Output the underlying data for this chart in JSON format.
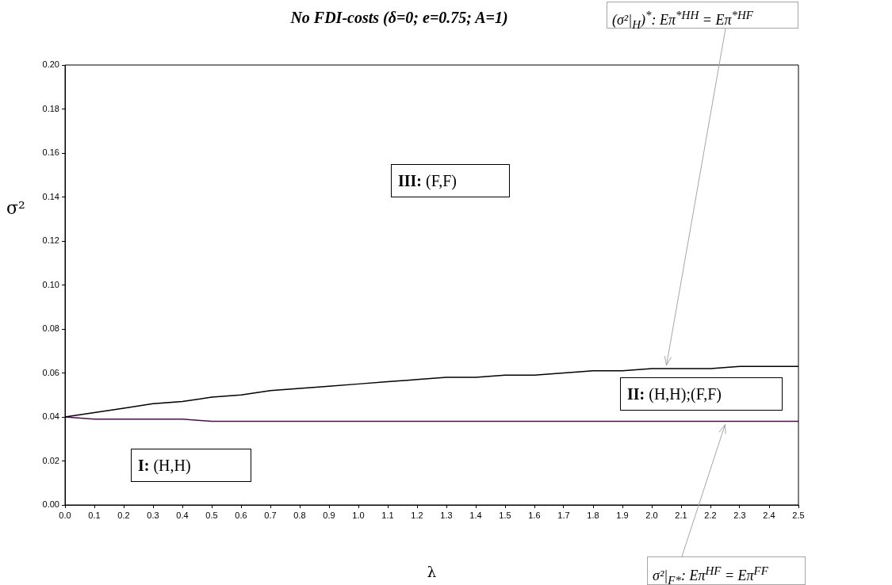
{
  "chart_data": {
    "type": "line",
    "title": "No FDI-costs (δ=0; e=0.75; A=1)",
    "xlabel": "λ",
    "ylabel": "σ²",
    "x": [
      0,
      0.1,
      0.2,
      0.3,
      0.4,
      0.5,
      0.6,
      0.7,
      0.8,
      0.9,
      1.0,
      1.1,
      1.2,
      1.3,
      1.4,
      1.5,
      1.6,
      1.7,
      1.8,
      1.9,
      2.0,
      2.1,
      2.2,
      2.3,
      2.4,
      2.5
    ],
    "series": [
      {
        "color": "#000000",
        "values": [
          0.04,
          0.042,
          0.044,
          0.046,
          0.047,
          0.049,
          0.05,
          0.052,
          0.053,
          0.054,
          0.055,
          0.056,
          0.057,
          0.058,
          0.058,
          0.059,
          0.059,
          0.06,
          0.061,
          0.061,
          0.062,
          0.062,
          0.062,
          0.063,
          0.063,
          0.063
        ]
      },
      {
        "color": "#4b0f4b",
        "values": [
          0.04,
          0.039,
          0.039,
          0.039,
          0.039,
          0.038,
          0.038,
          0.038,
          0.038,
          0.038,
          0.038,
          0.038,
          0.038,
          0.038,
          0.038,
          0.038,
          0.038,
          0.038,
          0.038,
          0.038,
          0.038,
          0.038,
          0.038,
          0.038,
          0.038,
          0.038
        ]
      }
    ],
    "xlim": [
      0,
      2.5
    ],
    "xticks": [
      {
        "value": 0,
        "label": "0.0"
      },
      {
        "value": 0.1,
        "label": "0.1"
      },
      {
        "value": 0.2,
        "label": "0.2"
      },
      {
        "value": 0.3,
        "label": "0.3"
      },
      {
        "value": 0.4,
        "label": "0.4"
      },
      {
        "value": 0.5,
        "label": "0.5"
      },
      {
        "value": 0.6,
        "label": "0.6"
      },
      {
        "value": 0.7,
        "label": "0.7"
      },
      {
        "value": 0.8,
        "label": "0.8"
      },
      {
        "value": 0.9,
        "label": "0.9"
      },
      {
        "value": 1.0,
        "label": "1.0"
      },
      {
        "value": 1.1,
        "label": "1.1"
      },
      {
        "value": 1.2,
        "label": "1.2"
      },
      {
        "value": 1.3,
        "label": "1.3"
      },
      {
        "value": 1.4,
        "label": "1.4"
      },
      {
        "value": 1.5,
        "label": "1.5"
      },
      {
        "value": 1.6,
        "label": "1.6"
      },
      {
        "value": 1.7,
        "label": "1.7"
      },
      {
        "value": 1.8,
        "label": "1.8"
      },
      {
        "value": 1.9,
        "label": "1.9"
      },
      {
        "value": 2.0,
        "label": "2.0"
      },
      {
        "value": 2.1,
        "label": "2.1"
      },
      {
        "value": 2.2,
        "label": "2.2"
      },
      {
        "value": 2.3,
        "label": "2.3"
      },
      {
        "value": 2.4,
        "label": "2.4"
      },
      {
        "value": 2.5,
        "label": "2.5"
      }
    ],
    "ylim": [
      0,
      0.2
    ],
    "yticks": [
      {
        "value": 0,
        "label": "0.00"
      },
      {
        "value": 0.02,
        "label": "0.02"
      },
      {
        "value": 0.04,
        "label": "0.04"
      },
      {
        "value": 0.06,
        "label": "0.06"
      },
      {
        "value": 0.08,
        "label": "0.08"
      },
      {
        "value": 0.1,
        "label": "0.10"
      },
      {
        "value": 0.12,
        "label": "0.12"
      },
      {
        "value": 0.14,
        "label": "0.14"
      },
      {
        "value": 0.16,
        "label": "0.16"
      },
      {
        "value": 0.18,
        "label": "0.18"
      },
      {
        "value": 0.2,
        "label": "0.20"
      }
    ],
    "grid": false,
    "legend": false,
    "marker": "none",
    "line_style": "solid",
    "annotations": [
      "III: (F,F)",
      "II: (H,H);(F,F)",
      "I: (H,H)",
      {
        "text": "(σ²|$_{H}$)$^{*}$: Eπ$^{*HH}$ = Eπ$^{*HF}$",
        "x": 2.05,
        "y": 0.062
      },
      {
        "text": "σ²|$_{F*}$: Eπ$^{HF}$ = Eπ$^{FF}$",
        "x": 2.25,
        "y": 0.038
      }
    ]
  }
}
